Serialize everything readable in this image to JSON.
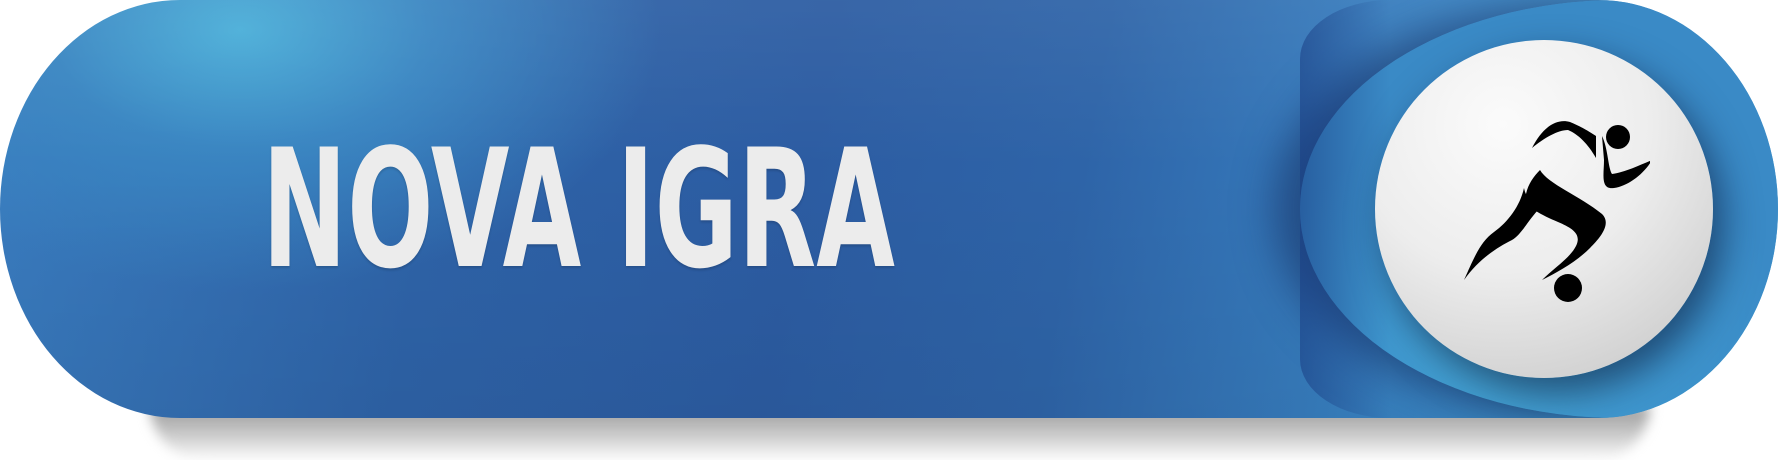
{
  "button": {
    "label": "NOVA IGRA",
    "icon": "runner-icon"
  },
  "colors": {
    "pill_blue_dark": "#2c5ca2",
    "pill_blue_light": "#4aa6d6",
    "cap_blue": "#3f98cf",
    "label_color": "#ececec",
    "icon_color": "#000000",
    "play_circle": "#ededed"
  }
}
